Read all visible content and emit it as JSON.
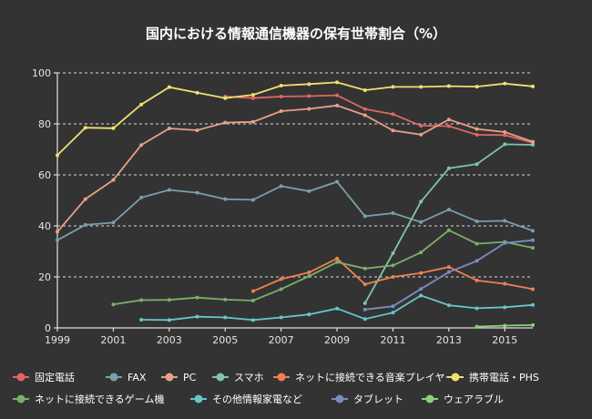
{
  "chart_data": {
    "type": "line",
    "title": "国内における情報通信機器の保有世帯割合（%）",
    "xlabel": "",
    "ylabel": "",
    "xlim": [
      1999,
      2016
    ],
    "ylim": [
      0,
      100
    ],
    "yticks": [
      0,
      20,
      40,
      60,
      80,
      100
    ],
    "xticks": [
      1999,
      2001,
      2003,
      2005,
      2007,
      2009,
      2011,
      2013,
      2015
    ],
    "grid": true,
    "legend_position": "bottom",
    "series": [
      {
        "name": "固定電話",
        "color": "#e06666",
        "x": [
          2005,
          2006,
          2007,
          2008,
          2009,
          2010,
          2011,
          2012,
          2013,
          2014,
          2015,
          2016
        ],
        "values": [
          90.7,
          90.1,
          90.7,
          90.9,
          91.2,
          85.8,
          83.8,
          79.3,
          79.1,
          75.7,
          75.6,
          72.6
        ]
      },
      {
        "name": "FAX",
        "color": "#7b9fab",
        "x": [
          1999,
          2000,
          2001,
          2002,
          2003,
          2004,
          2005,
          2006,
          2007,
          2008,
          2009,
          2010,
          2011,
          2012,
          2013,
          2014,
          2015,
          2016
        ],
        "values": [
          34.4,
          40.4,
          41.3,
          51.1,
          54.1,
          53.0,
          50.5,
          50.2,
          55.6,
          53.6,
          57.3,
          43.8,
          45.0,
          41.5,
          46.4,
          41.8,
          42.0,
          38.1
        ]
      },
      {
        "name": "PC",
        "color": "#e8a088",
        "x": [
          1999,
          2000,
          2001,
          2002,
          2003,
          2004,
          2005,
          2006,
          2007,
          2008,
          2009,
          2010,
          2011,
          2012,
          2013,
          2014,
          2015,
          2016
        ],
        "values": [
          37.7,
          50.5,
          58.0,
          71.7,
          78.2,
          77.5,
          80.5,
          80.8,
          85.0,
          85.9,
          87.2,
          83.4,
          77.4,
          75.8,
          81.7,
          78.0,
          76.8,
          73.0
        ]
      },
      {
        "name": "スマホ",
        "color": "#7fc4a6",
        "x": [
          2010,
          2011,
          2012,
          2013,
          2014,
          2015,
          2016
        ],
        "values": [
          9.7,
          29.3,
          49.5,
          62.6,
          64.2,
          72.0,
          71.8
        ]
      },
      {
        "name": "ネットに接続できる音楽プレイヤー",
        "color": "#f08050",
        "x": [
          2006,
          2007,
          2008,
          2009,
          2010,
          2011,
          2012,
          2013,
          2014,
          2015,
          2016
        ],
        "values": [
          14.4,
          19.1,
          21.8,
          27.2,
          17.1,
          20.0,
          21.5,
          23.9,
          18.6,
          17.3,
          15.2
        ]
      },
      {
        "name": "携帯電話・PHS",
        "color": "#f0e070",
        "x": [
          1999,
          2000,
          2001,
          2002,
          2003,
          2004,
          2005,
          2006,
          2007,
          2008,
          2009,
          2010,
          2011,
          2012,
          2013,
          2014,
          2015,
          2016
        ],
        "values": [
          67.7,
          78.5,
          78.3,
          87.6,
          94.4,
          92.2,
          90.1,
          91.4,
          95.0,
          95.6,
          96.3,
          93.2,
          94.5,
          94.5,
          94.8,
          94.6,
          95.8,
          94.7
        ]
      },
      {
        "name": "ネットに接続できるゲーム機",
        "color": "#7ab06a",
        "x": [
          2001,
          2002,
          2003,
          2004,
          2005,
          2006,
          2007,
          2008,
          2009,
          2010,
          2011,
          2012,
          2013,
          2014,
          2015,
          2016
        ],
        "values": [
          9.2,
          10.9,
          11.0,
          11.9,
          11.1,
          10.7,
          15.2,
          20.3,
          25.8,
          23.3,
          24.5,
          29.6,
          38.3,
          33.0,
          33.7,
          31.4
        ]
      },
      {
        "name": "その他情報家電など",
        "color": "#66c6cc",
        "x": [
          2002,
          2003,
          2004,
          2005,
          2006,
          2007,
          2008,
          2009,
          2010,
          2011,
          2012,
          2013,
          2014,
          2015,
          2016
        ],
        "values": [
          3.2,
          3.1,
          4.4,
          4.1,
          3.1,
          4.1,
          5.3,
          7.6,
          3.5,
          6.0,
          12.7,
          8.9,
          7.7,
          8.1,
          9.0
        ]
      },
      {
        "name": "タブレット",
        "color": "#7a8cc0",
        "x": [
          2010,
          2011,
          2012,
          2013,
          2014,
          2015,
          2016
        ],
        "values": [
          7.2,
          8.5,
          15.3,
          21.9,
          26.3,
          33.3,
          34.4
        ]
      },
      {
        "name": "ウェアラブル",
        "color": "#8ed07c",
        "x": [
          2014,
          2015,
          2016
        ],
        "values": [
          0.5,
          0.9,
          1.1
        ]
      }
    ]
  }
}
